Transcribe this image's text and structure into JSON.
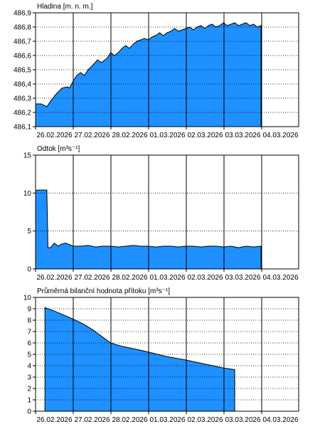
{
  "chart_data": [
    {
      "type": "area",
      "title": "Hladina [m. n. m.]",
      "ylim": [
        486.1,
        486.9
      ],
      "yticks": [
        "486,1",
        "486,2",
        "486,3",
        "486,4",
        "486,5",
        "486,6",
        "486,7",
        "486,8",
        "486,9"
      ],
      "ytick_values": [
        486.1,
        486.2,
        486.3,
        486.4,
        486.5,
        486.6,
        486.7,
        486.8,
        486.9
      ],
      "xlim": [
        0,
        7
      ],
      "xticks": [
        "26.02.2026",
        "27.02.2026",
        "28.02.2026",
        "01.03.2026",
        "02.03.2026",
        "03.03.2026",
        "04.03.2026"
      ],
      "grid": "dotted-horizontal, solid-vertical-at-days",
      "fill_color": "#1e90ff",
      "series": [
        {
          "x": [
            0.0,
            0.15,
            0.3,
            0.4,
            0.55,
            0.7,
            0.85,
            0.9,
            1.0,
            1.1,
            1.2,
            1.3,
            1.4,
            1.55,
            1.65,
            1.75,
            1.9,
            2.0,
            2.1,
            2.2,
            2.3,
            2.4,
            2.5,
            2.6,
            2.7,
            2.8,
            2.9,
            3.0,
            3.1,
            3.2,
            3.3,
            3.4,
            3.5,
            3.6,
            3.7,
            3.8,
            3.9,
            4.0,
            4.1,
            4.2,
            4.3,
            4.4,
            4.5,
            4.6,
            4.7,
            4.8,
            4.9,
            5.0,
            5.1,
            5.2,
            5.3,
            5.4,
            5.5,
            5.6,
            5.7,
            5.8,
            5.9,
            6.0
          ],
          "values": [
            486.26,
            486.26,
            486.24,
            486.28,
            486.33,
            486.37,
            486.38,
            486.37,
            486.42,
            486.46,
            486.48,
            486.46,
            486.5,
            486.54,
            486.57,
            486.55,
            486.58,
            486.62,
            486.6,
            486.62,
            486.65,
            486.67,
            486.65,
            486.68,
            486.7,
            486.71,
            486.72,
            486.71,
            486.73,
            486.74,
            486.76,
            486.74,
            486.76,
            486.77,
            486.79,
            486.77,
            486.78,
            486.79,
            486.8,
            486.78,
            486.8,
            486.81,
            486.79,
            486.81,
            486.82,
            486.8,
            486.81,
            486.83,
            486.81,
            486.82,
            486.83,
            486.81,
            486.82,
            486.83,
            486.81,
            486.82,
            486.8,
            486.81
          ]
        }
      ]
    },
    {
      "type": "area",
      "title": "Odtok [m³s⁻¹]",
      "ylim": [
        0,
        15
      ],
      "yticks": [
        "0",
        "5",
        "10",
        "15"
      ],
      "ytick_values": [
        0,
        5,
        10,
        15
      ],
      "xlim": [
        0,
        7
      ],
      "xticks": [
        "26.02.2026",
        "27.02.2026",
        "28.02.2026",
        "01.03.2026",
        "02.03.2026",
        "03.03.2026",
        "04.03.2026"
      ],
      "grid": "dotted-horizontal, solid-vertical-at-days",
      "fill_color": "#1e90ff",
      "series": [
        {
          "x": [
            0.0,
            0.05,
            0.3,
            0.33,
            0.4,
            0.5,
            0.6,
            0.7,
            0.8,
            1.0,
            1.2,
            1.4,
            1.6,
            1.8,
            2.0,
            2.2,
            2.4,
            2.6,
            2.8,
            3.0,
            3.2,
            3.4,
            3.6,
            3.8,
            4.0,
            4.2,
            4.4,
            4.6,
            4.8,
            5.0,
            5.2,
            5.4,
            5.6,
            5.8,
            6.0
          ],
          "values": [
            10.3,
            10.4,
            10.4,
            2.8,
            2.8,
            3.4,
            3.0,
            3.3,
            3.4,
            3.0,
            3.0,
            3.1,
            2.9,
            3.0,
            3.0,
            2.9,
            3.0,
            3.1,
            3.0,
            3.0,
            2.9,
            3.0,
            3.0,
            2.9,
            3.0,
            3.0,
            2.9,
            3.0,
            3.0,
            2.9,
            3.0,
            2.8,
            3.0,
            2.9,
            3.0
          ]
        }
      ]
    },
    {
      "type": "area",
      "title": "Průměrná bilanční hodnota přítoku [m³s⁻¹]",
      "ylim": [
        0,
        10
      ],
      "yticks": [
        "0",
        "1",
        "2",
        "3",
        "4",
        "5",
        "6",
        "7",
        "8",
        "9",
        "10"
      ],
      "ytick_values": [
        0,
        1,
        2,
        3,
        4,
        5,
        6,
        7,
        8,
        9,
        10
      ],
      "xlim": [
        0,
        7
      ],
      "xticks": [
        "26.02.2026",
        "27.02.2026",
        "28.02.2026",
        "01.03.2026",
        "02.03.2026",
        "03.03.2026",
        "04.03.2026"
      ],
      "grid": "dotted-horizontal, solid-vertical-at-days",
      "fill_color": "#1e90ff",
      "series": [
        {
          "x": [
            0.25,
            0.5,
            1.0,
            1.25,
            1.5,
            2.0,
            2.3,
            2.6,
            3.0,
            3.5,
            4.0,
            4.5,
            5.0,
            5.3
          ],
          "values": [
            9.1,
            8.8,
            8.1,
            7.7,
            7.2,
            6.0,
            5.7,
            5.5,
            5.2,
            4.8,
            4.5,
            4.15,
            3.8,
            3.65
          ]
        }
      ]
    }
  ]
}
